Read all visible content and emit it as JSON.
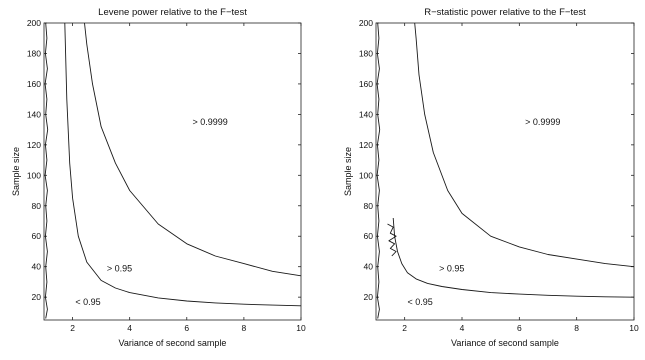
{
  "chart_data": [
    {
      "type": "line",
      "title": "Levene power relative to the F−test",
      "xlabel": "Variance of second sample",
      "ylabel": "Sample size",
      "xlim": [
        1,
        10
      ],
      "ylim": [
        5,
        200
      ],
      "xticks": [
        2,
        4,
        6,
        8,
        10
      ],
      "yticks": [
        20,
        40,
        60,
        80,
        100,
        120,
        140,
        160,
        180,
        200
      ],
      "grid": false,
      "series": [
        {
          "x": [
            1.73,
            1.8,
            1.9,
            2.0,
            2.2,
            2.5,
            3.0,
            3.5,
            4.0,
            5.0,
            6.0,
            7.0,
            8.0,
            9.0,
            10.0
          ],
          "y": [
            200,
            150,
            108,
            85,
            60,
            43,
            31,
            26,
            23,
            19.5,
            17.5,
            16.2,
            15.4,
            14.8,
            14.3
          ]
        },
        {
          "x": [
            2.42,
            2.5,
            2.7,
            3.0,
            3.5,
            4.0,
            5.0,
            6.0,
            7.0,
            8.0,
            9.0,
            10.0
          ],
          "y": [
            200,
            186,
            160,
            132,
            108,
            90,
            68,
            55,
            47,
            42,
            37,
            34
          ]
        },
        {
          "x": [
            1.06,
            1.1,
            1.05,
            1.12,
            1.04,
            1.1,
            1.06,
            1.13,
            1.05,
            1.1,
            1.04,
            1.12,
            1.06,
            1.1,
            1.05,
            1.12,
            1.06,
            1.1,
            1.05,
            1.12,
            1.06
          ],
          "y": [
            200,
            190,
            180,
            170,
            160,
            150,
            140,
            130,
            120,
            110,
            100,
            90,
            80,
            70,
            60,
            50,
            40,
            30,
            20,
            12,
            6
          ]
        }
      ],
      "annotations": [
        {
          "text": "> 0.9999",
          "x": 6.2,
          "y": 133
        },
        {
          "text": "> 0.95",
          "x": 3.2,
          "y": 37
        },
        {
          "text": "< 0.95",
          "x": 2.1,
          "y": 15
        }
      ]
    },
    {
      "type": "line",
      "title": "R−statistic power relative to the F−test",
      "xlabel": "Variance of second sample",
      "ylabel": "Sample size",
      "xlim": [
        1,
        10
      ],
      "ylim": [
        5,
        200
      ],
      "xticks": [
        2,
        4,
        6,
        8,
        10
      ],
      "yticks": [
        20,
        40,
        60,
        80,
        100,
        120,
        140,
        160,
        180,
        200
      ],
      "grid": false,
      "series": [
        {
          "x": [
            1.6,
            1.65,
            1.75,
            1.9,
            2.1,
            2.4,
            2.8,
            3.3,
            4.0,
            5.0,
            6.0,
            7.0,
            8.0,
            9.0,
            10.0
          ],
          "y": [
            72,
            60,
            50,
            42,
            36,
            32,
            29,
            27,
            25,
            23,
            22,
            21.2,
            20.6,
            20.2,
            20
          ]
        },
        {
          "x": [
            2.35,
            2.4,
            2.5,
            2.7,
            3.0,
            3.5,
            4.0,
            5.0,
            6.0,
            7.0,
            8.0,
            9.0,
            10.0
          ],
          "y": [
            200,
            190,
            166,
            140,
            115,
            90,
            75,
            60,
            53,
            48,
            45,
            42,
            40
          ]
        },
        {
          "x": [
            1.06,
            1.1,
            1.05,
            1.12,
            1.04,
            1.1,
            1.06,
            1.13,
            1.05,
            1.1,
            1.04,
            1.12,
            1.06,
            1.1,
            1.05,
            1.12,
            1.06,
            1.1,
            1.05,
            1.12,
            1.06
          ],
          "y": [
            200,
            190,
            180,
            170,
            160,
            150,
            140,
            130,
            120,
            110,
            100,
            90,
            80,
            70,
            60,
            50,
            40,
            30,
            20,
            12,
            6
          ]
        },
        {
          "x": [
            1.4,
            1.6,
            1.5,
            1.7,
            1.45,
            1.65,
            1.5,
            1.7,
            1.55
          ],
          "y": [
            68,
            66,
            62,
            60,
            57,
            55,
            52,
            50,
            47
          ]
        }
      ],
      "annotations": [
        {
          "text": "> 0.9999",
          "x": 6.2,
          "y": 133
        },
        {
          "text": "> 0.95",
          "x": 3.2,
          "y": 37
        },
        {
          "text": "< 0.95",
          "x": 2.1,
          "y": 15
        }
      ]
    }
  ]
}
